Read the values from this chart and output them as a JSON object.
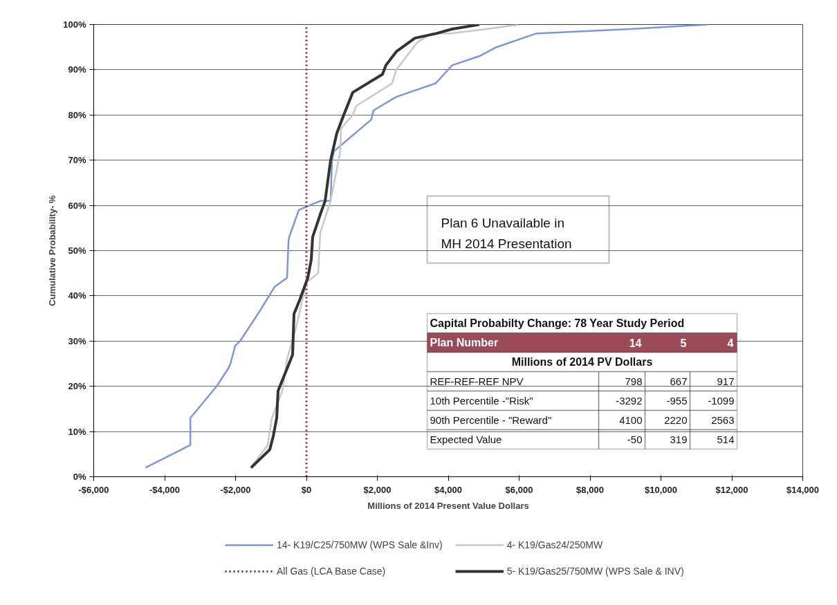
{
  "chart_data": {
    "type": "line",
    "xlabel": "Millions of 2014 Present Value Dollars",
    "ylabel": "Cumulative Probability- %",
    "xlim": [
      -6000,
      14000
    ],
    "xticks": [
      {
        "value": -6000,
        "label": "-$6,000"
      },
      {
        "value": -4000,
        "label": "-$4,000"
      },
      {
        "value": -2000,
        "label": "-$2,000"
      },
      {
        "value": 0,
        "label": "$0"
      },
      {
        "value": 2000,
        "label": "$2,000"
      },
      {
        "value": 4000,
        "label": "$4,000"
      },
      {
        "value": 6000,
        "label": "$6,000"
      },
      {
        "value": 8000,
        "label": "$8,000"
      },
      {
        "value": 10000,
        "label": "$10,000"
      },
      {
        "value": 12000,
        "label": "$12,000"
      },
      {
        "value": 14000,
        "label": "$14,000"
      }
    ],
    "ylim": [
      0,
      100
    ],
    "yticks": [
      {
        "value": 0,
        "label": "0%"
      },
      {
        "value": 10,
        "label": "10%"
      },
      {
        "value": 20,
        "label": "20%"
      },
      {
        "value": 30,
        "label": "30%"
      },
      {
        "value": 40,
        "label": "40%"
      },
      {
        "value": 50,
        "label": "50%"
      },
      {
        "value": 60,
        "label": "60%"
      },
      {
        "value": 70,
        "label": "70%"
      },
      {
        "value": 80,
        "label": "80%"
      },
      {
        "value": 90,
        "label": "90%"
      },
      {
        "value": 100,
        "label": "100%"
      }
    ],
    "grid": "y",
    "legend": "bottom",
    "line_style": "solid",
    "series": [
      {
        "name": "14- K19/C25/750MW (WPS Sale &Inv)",
        "color": "#7b96d9",
        "x": [
          -4540,
          -3275,
          -3275,
          -2534,
          -2200,
          -2144,
          -2008,
          -1871,
          -1287,
          -897,
          -546,
          -507,
          -487,
          -214,
          390,
          682,
          721,
          780,
          1832,
          1890,
          2534,
          3645,
          4113,
          4873,
          5361,
          6472,
          9123,
          11300
        ],
        "values": [
          2,
          7,
          13,
          20,
          24,
          25,
          29,
          30,
          37,
          42,
          44,
          52,
          53,
          59,
          61,
          61,
          70,
          72,
          79,
          81,
          84,
          87,
          91,
          93,
          95,
          98,
          99,
          100
        ]
      },
      {
        "name": "4- K19/Gas24/250MW",
        "color": "#c8c8c8",
        "x": [
          -1580,
          -1092,
          -975,
          -682,
          -546,
          -292,
          0,
          331,
          390,
          682,
          955,
          975,
          1307,
          1404,
          2418,
          2534,
          2925,
          3120,
          3510,
          4035,
          5088,
          5985
        ],
        "values": [
          2,
          7,
          13,
          19,
          26,
          33,
          43,
          45,
          54,
          61,
          72,
          77,
          80,
          82,
          87,
          90,
          94,
          96,
          98,
          98,
          99,
          100
        ]
      },
      {
        "name": "5- K19/Gas25/750MW (WPS Sale & INV)",
        "color": "#333333",
        "x": [
          -1560,
          -1034,
          -936,
          -838,
          -800,
          -390,
          -351,
          -195,
          39,
          136,
          175,
          390,
          527,
          682,
          858,
          1053,
          1307,
          2144,
          2242,
          2534,
          3060,
          3645,
          4113,
          4873
        ],
        "values": [
          2,
          6,
          9,
          13,
          19,
          27,
          36,
          39,
          44,
          48,
          53,
          58,
          61,
          70,
          76,
          80,
          85,
          89,
          91,
          94,
          97,
          98,
          99,
          100
        ]
      }
    ],
    "ref_lines": [
      {
        "axis": "x",
        "value": 0,
        "label": "All Gas (LCA Base Case)",
        "color": "#8b1a2b",
        "line_style": "dotted"
      }
    ],
    "annotations": [
      "Plan 6 Unavailable in MH 2014 Presentation",
      "Capital Probabilty Change: 78 Year Study Period",
      "Plan Number",
      "14",
      "5",
      "4",
      "Millions of 2014 PV Dollars",
      "REF-REF-REF NPV",
      "798",
      "667",
      "917",
      "10th Percentile -\"Risk\"",
      "-3292",
      "-955",
      "-1099",
      "90th Percentile - \"Reward\"",
      "4100",
      "2220",
      "2563",
      "Expected Value",
      "-50",
      "319",
      "514"
    ]
  }
}
